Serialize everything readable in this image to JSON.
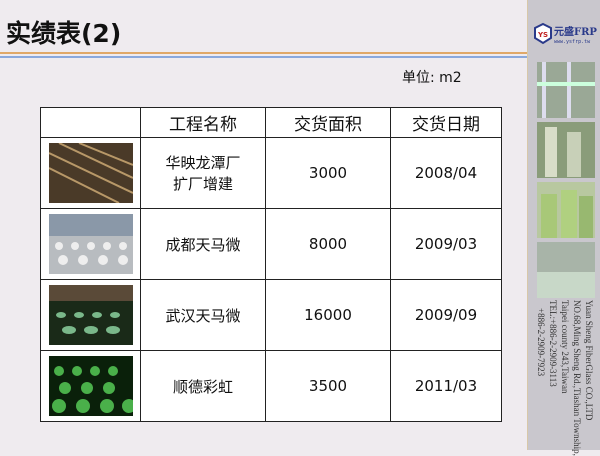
{
  "title": "实绩表(2)",
  "unit": "单位: m2",
  "logo": {
    "brand": "元盛FRP",
    "url": "www.ysfrp.tw",
    "mark": "YS"
  },
  "company": [
    "Yuan Sheng FiberGlass CO.,LTD",
    "NO.68,Ming Sheng Rd.,Tiashan Township,",
    "Taipei county 243,Taiwan",
    "TEL:+886-2-2909-3113",
    "+886-2-2909-7923"
  ],
  "table": {
    "headers": [
      "",
      "工程名称",
      "交货面积",
      "交货日期"
    ],
    "rows": [
      {
        "name": [
          "华映龙潭厂",
          "扩厂增建"
        ],
        "area": "3000",
        "date": "2008/04"
      },
      {
        "name": [
          "成都天马微"
        ],
        "area": "8000",
        "date": "2009/03"
      },
      {
        "name": [
          "武汉天马微"
        ],
        "area": "16000",
        "date": "2009/09"
      },
      {
        "name": [
          "顺德彩虹"
        ],
        "area": "3500",
        "date": "2011/03"
      }
    ]
  },
  "colors": {
    "accent_orange": "#e0a868",
    "accent_blue": "#8aa8dc",
    "panel": "#c9c7cd"
  }
}
